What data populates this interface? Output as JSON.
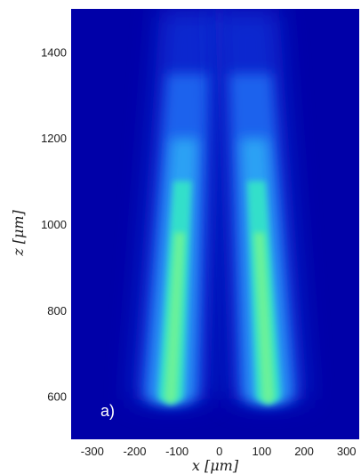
{
  "chart_data": {
    "type": "heatmap",
    "title": "",
    "xlabel": "x [μm]",
    "ylabel": "z [μm]",
    "panel_label": "a)",
    "xlim": [
      -350,
      330
    ],
    "ylim": [
      500,
      1500
    ],
    "x_ticks": [
      -300,
      -200,
      -100,
      0,
      100,
      200,
      300
    ],
    "y_ticks": [
      600,
      800,
      1000,
      1200,
      1400
    ],
    "colormap": [
      "#0000a8",
      "#0b2fd6",
      "#1f6cf2",
      "#2fa8f5",
      "#33e3c8",
      "#7cf78a"
    ],
    "beams": [
      {
        "name": "",
        "x_start": -115,
        "x_end": -65,
        "z_start": 595,
        "z_end": 1500,
        "peak_z": 980
      },
      {
        "name": "",
        "x_start": 115,
        "x_end": 65,
        "z_start": 595,
        "z_end": 1500,
        "peak_z": 980
      }
    ]
  }
}
